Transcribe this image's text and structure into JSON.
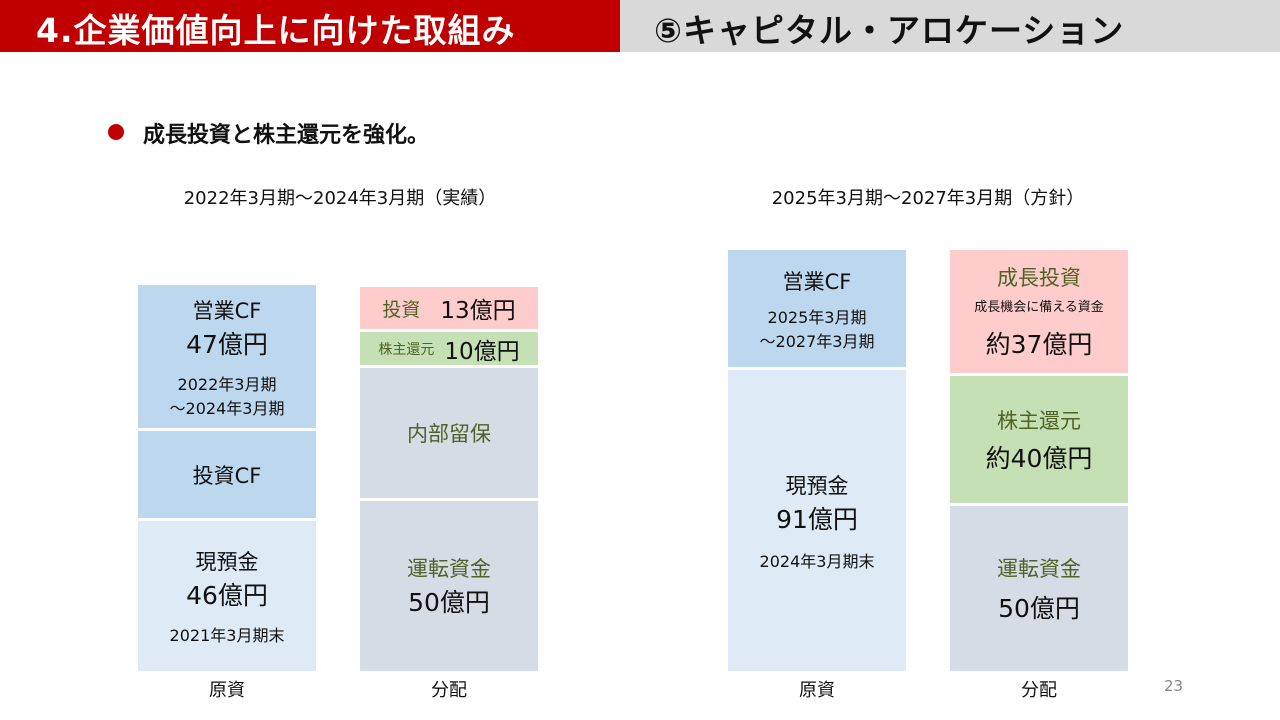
{
  "header": {
    "section_title": "4.企業価値向上に向けた取組み",
    "sub_title": "⑤キャピタル・アロケーション"
  },
  "bullet": "成長投資と株主還元を強化。",
  "left": {
    "period": "2022年3月期～2024年3月期（実績）",
    "source_label": "原資",
    "alloc_label": "分配",
    "source": {
      "op_cf": {
        "label": "営業CF",
        "value": "47億円",
        "period_line1": "2022年3月期",
        "period_line2": "～2024年3月期"
      },
      "inv_cf": {
        "label": "投資CF"
      },
      "cash": {
        "label": "現預金",
        "value": "46億円",
        "note": "2021年3月期末"
      }
    },
    "alloc": {
      "investment": {
        "label": "投資",
        "value": "13億円"
      },
      "return": {
        "label": "株主還元",
        "value": "10億円"
      },
      "retained": {
        "label": "内部留保"
      },
      "working": {
        "label": "運転資金",
        "value": "50億円"
      }
    }
  },
  "right": {
    "period": "2025年3月期～2027年3月期（方針）",
    "source_label": "原資",
    "alloc_label": "分配",
    "source": {
      "op_cf": {
        "label": "営業CF",
        "period_line1": "2025年3月期",
        "period_line2": "～2027年3月期"
      },
      "cash": {
        "label": "現預金",
        "value": "91億円",
        "note": "2024年3月期末"
      }
    },
    "alloc": {
      "growth": {
        "label": "成長投資",
        "note": "成長機会に備える資金",
        "value": "約37億円"
      },
      "return": {
        "label": "株主還元",
        "value": "約40億円"
      },
      "working": {
        "label": "運転資金",
        "value": "50億円"
      }
    }
  },
  "page_number": "23",
  "colors": {
    "accent_red": "#c00000",
    "header_grey": "#d9d9d9",
    "blue": "#bdd7ee",
    "light_blue": "#deebf7",
    "pink": "#ffcccc",
    "green": "#c5e0b4",
    "grey": "#d6dce5",
    "olive_text": "#4f6228"
  }
}
